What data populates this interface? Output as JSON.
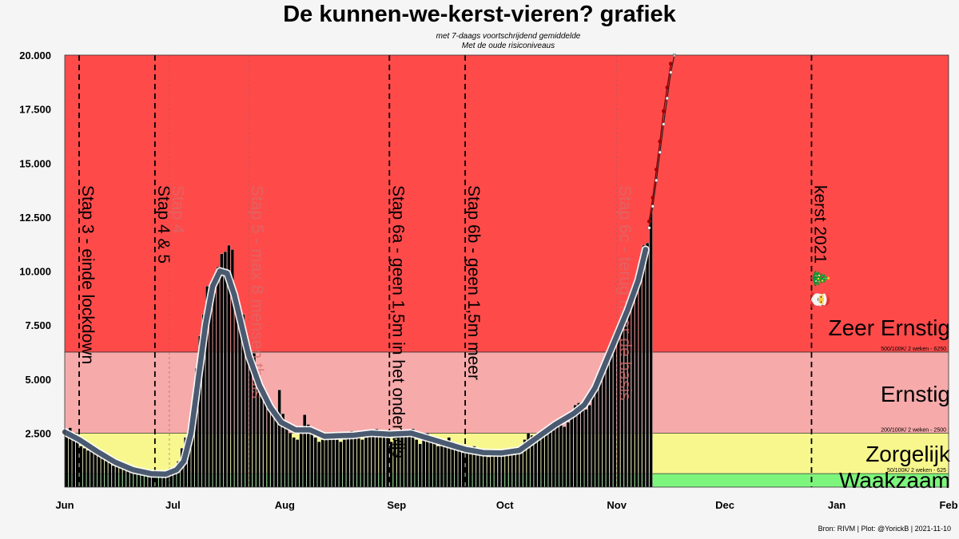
{
  "chart_data": {
    "type": "bar",
    "title": "De kunnen-we-kerst-vieren? grafiek",
    "subtitle_lines": [
      "met 7-daags voortschrijdend gemiddelde",
      "Met de oude risiconiveaus"
    ],
    "source": "Bron: RIVM | Plot: @YorickB  |  2021-11-10",
    "ylim": [
      0,
      20000
    ],
    "yticks": [
      2500,
      5000,
      7500,
      10000,
      12500,
      15000,
      17500,
      20000
    ],
    "ytick_labels": [
      "2.500",
      "5.000",
      "7.500",
      "10.000",
      "12.500",
      "15.000",
      "17.500",
      "20.000"
    ],
    "xlim": [
      "2021-06-01",
      "2022-02-01"
    ],
    "xticks": [
      {
        "date": "2021-06-01",
        "label": "Jun"
      },
      {
        "date": "2021-07-01",
        "label": "Jul"
      },
      {
        "date": "2021-08-01",
        "label": "Aug"
      },
      {
        "date": "2021-09-01",
        "label": "Sep"
      },
      {
        "date": "2021-10-01",
        "label": "Oct"
      },
      {
        "date": "2021-11-01",
        "label": "Nov"
      },
      {
        "date": "2021-12-01",
        "label": "Dec"
      },
      {
        "date": "2022-01-01",
        "label": "Jan"
      },
      {
        "date": "2022-02-01",
        "label": "Feb"
      }
    ],
    "grid": false,
    "zones": [
      {
        "name": "Waakzaam",
        "from": 0,
        "to": 625,
        "color": "#7df57d",
        "threshold_label": ""
      },
      {
        "name": "Zorgelijk",
        "from": 625,
        "to": 2500,
        "color": "#f7f78e",
        "threshold_label": "50/100K/ 2 weken - 625"
      },
      {
        "name": "Ernstig",
        "from": 2500,
        "to": 6250,
        "color": "#f7aaaa",
        "threshold_label": "200/100K/ 2 weken - 2500"
      },
      {
        "name": "Zeer Ernstig",
        "from": 6250,
        "to": 20000,
        "color": "#ff4a4a",
        "threshold_label": "500/100K/ 2 weken - 6250"
      }
    ],
    "events": [
      {
        "date": "2021-06-05",
        "label": "Stap 3 - einde lockdown",
        "style": "dark"
      },
      {
        "date": "2021-06-26",
        "label": "Stap 4 & 5",
        "style": "dark"
      },
      {
        "date": "2021-06-30",
        "label": "Stap 4",
        "style": "faded"
      },
      {
        "date": "2021-07-22",
        "label": "Stap 5 - max 8 mensen thuis",
        "style": "faded"
      },
      {
        "date": "2021-08-30",
        "label": "Stap 6a - geen 1,5m in het onderwijs",
        "style": "dark"
      },
      {
        "date": "2021-09-20",
        "label": "Stap 6b - geen 1,5m meer",
        "style": "dark"
      },
      {
        "date": "2021-11-01",
        "label": "Stap 6c - terug naar de basis",
        "style": "faded"
      },
      {
        "date": "2021-12-25",
        "label": "kerst 2021 🎄🎅",
        "style": "dark"
      }
    ],
    "daily_cases": [
      {
        "date": "2021-06-01",
        "value": 2500
      },
      {
        "date": "2021-06-02",
        "value": 2750
      },
      {
        "date": "2021-06-03",
        "value": 2350
      },
      {
        "date": "2021-06-04",
        "value": 2200
      },
      {
        "date": "2021-06-05",
        "value": 1900
      },
      {
        "date": "2021-06-06",
        "value": 1800
      },
      {
        "date": "2021-06-07",
        "value": 1700
      },
      {
        "date": "2021-06-08",
        "value": 1850
      },
      {
        "date": "2021-06-09",
        "value": 1750
      },
      {
        "date": "2021-06-10",
        "value": 1550
      },
      {
        "date": "2021-06-11",
        "value": 1450
      },
      {
        "date": "2021-06-12",
        "value": 1250
      },
      {
        "date": "2021-06-13",
        "value": 1150
      },
      {
        "date": "2021-06-14",
        "value": 1000
      },
      {
        "date": "2021-06-15",
        "value": 1050
      },
      {
        "date": "2021-06-16",
        "value": 950
      },
      {
        "date": "2021-06-17",
        "value": 900
      },
      {
        "date": "2021-06-18",
        "value": 850
      },
      {
        "date": "2021-06-19",
        "value": 780
      },
      {
        "date": "2021-06-20",
        "value": 720
      },
      {
        "date": "2021-06-21",
        "value": 680
      },
      {
        "date": "2021-06-22",
        "value": 650
      },
      {
        "date": "2021-06-23",
        "value": 640
      },
      {
        "date": "2021-06-24",
        "value": 620
      },
      {
        "date": "2021-06-25",
        "value": 600
      },
      {
        "date": "2021-06-26",
        "value": 580
      },
      {
        "date": "2021-06-27",
        "value": 550
      },
      {
        "date": "2021-06-28",
        "value": 600
      },
      {
        "date": "2021-06-29",
        "value": 650
      },
      {
        "date": "2021-06-30",
        "value": 750
      },
      {
        "date": "2021-07-01",
        "value": 900
      },
      {
        "date": "2021-07-02",
        "value": 1200
      },
      {
        "date": "2021-07-03",
        "value": 1800
      },
      {
        "date": "2021-07-04",
        "value": 2300
      },
      {
        "date": "2021-07-05",
        "value": 2600
      },
      {
        "date": "2021-07-06",
        "value": 3700
      },
      {
        "date": "2021-07-07",
        "value": 5500
      },
      {
        "date": "2021-07-08",
        "value": 7000
      },
      {
        "date": "2021-07-09",
        "value": 8000
      },
      {
        "date": "2021-07-10",
        "value": 9300
      },
      {
        "date": "2021-07-11",
        "value": 8700
      },
      {
        "date": "2021-07-12",
        "value": 9000
      },
      {
        "date": "2021-07-13",
        "value": 10200
      },
      {
        "date": "2021-07-14",
        "value": 10800
      },
      {
        "date": "2021-07-15",
        "value": 10900
      },
      {
        "date": "2021-07-16",
        "value": 11200
      },
      {
        "date": "2021-07-17",
        "value": 11000
      },
      {
        "date": "2021-07-18",
        "value": 9000
      },
      {
        "date": "2021-07-19",
        "value": 8200
      },
      {
        "date": "2021-07-20",
        "value": 8000
      },
      {
        "date": "2021-07-21",
        "value": 6800
      },
      {
        "date": "2021-07-22",
        "value": 6300
      },
      {
        "date": "2021-07-23",
        "value": 6200
      },
      {
        "date": "2021-07-24",
        "value": 5200
      },
      {
        "date": "2021-07-25",
        "value": 4700
      },
      {
        "date": "2021-07-26",
        "value": 4500
      },
      {
        "date": "2021-07-27",
        "value": 4000
      },
      {
        "date": "2021-07-28",
        "value": 3800
      },
      {
        "date": "2021-07-29",
        "value": 3600
      },
      {
        "date": "2021-07-30",
        "value": 4500
      },
      {
        "date": "2021-07-31",
        "value": 3400
      },
      {
        "date": "2021-08-01",
        "value": 2900
      },
      {
        "date": "2021-08-02",
        "value": 2500
      },
      {
        "date": "2021-08-03",
        "value": 2300
      },
      {
        "date": "2021-08-04",
        "value": 2200
      },
      {
        "date": "2021-08-05",
        "value": 2600
      },
      {
        "date": "2021-08-06",
        "value": 3350
      },
      {
        "date": "2021-08-07",
        "value": 2900
      },
      {
        "date": "2021-08-08",
        "value": 2500
      },
      {
        "date": "2021-08-09",
        "value": 2300
      },
      {
        "date": "2021-08-10",
        "value": 2100
      },
      {
        "date": "2021-08-11",
        "value": 2200
      },
      {
        "date": "2021-08-12",
        "value": 2400
      },
      {
        "date": "2021-08-13",
        "value": 2500
      },
      {
        "date": "2021-08-14",
        "value": 2400
      },
      {
        "date": "2021-08-15",
        "value": 2200
      },
      {
        "date": "2021-08-16",
        "value": 2100
      },
      {
        "date": "2021-08-17",
        "value": 2200
      },
      {
        "date": "2021-08-18",
        "value": 2500
      },
      {
        "date": "2021-08-19",
        "value": 2600
      },
      {
        "date": "2021-08-20",
        "value": 2500
      },
      {
        "date": "2021-08-21",
        "value": 2400
      },
      {
        "date": "2021-08-22",
        "value": 2200
      },
      {
        "date": "2021-08-23",
        "value": 2300
      },
      {
        "date": "2021-08-24",
        "value": 2400
      },
      {
        "date": "2021-08-25",
        "value": 2600
      },
      {
        "date": "2021-08-26",
        "value": 2700
      },
      {
        "date": "2021-08-27",
        "value": 2600
      },
      {
        "date": "2021-08-28",
        "value": 2500
      },
      {
        "date": "2021-08-29",
        "value": 2300
      },
      {
        "date": "2021-08-30",
        "value": 2100
      },
      {
        "date": "2021-08-31",
        "value": 2200
      },
      {
        "date": "2021-09-01",
        "value": 2500
      },
      {
        "date": "2021-09-02",
        "value": 2600
      },
      {
        "date": "2021-09-03",
        "value": 2400
      },
      {
        "date": "2021-09-04",
        "value": 2600
      },
      {
        "date": "2021-09-05",
        "value": 2700
      },
      {
        "date": "2021-09-06",
        "value": 2200
      },
      {
        "date": "2021-09-07",
        "value": 2000
      },
      {
        "date": "2021-09-08",
        "value": 2300
      },
      {
        "date": "2021-09-09",
        "value": 2500
      },
      {
        "date": "2021-09-10",
        "value": 2300
      },
      {
        "date": "2021-09-11",
        "value": 2100
      },
      {
        "date": "2021-09-12",
        "value": 1900
      },
      {
        "date": "2021-09-13",
        "value": 2000
      },
      {
        "date": "2021-09-14",
        "value": 2100
      },
      {
        "date": "2021-09-15",
        "value": 2300
      },
      {
        "date": "2021-09-16",
        "value": 2100
      },
      {
        "date": "2021-09-17",
        "value": 1900
      },
      {
        "date": "2021-09-18",
        "value": 1700
      },
      {
        "date": "2021-09-19",
        "value": 1600
      },
      {
        "date": "2021-09-20",
        "value": 1700
      },
      {
        "date": "2021-09-21",
        "value": 1800
      },
      {
        "date": "2021-09-22",
        "value": 1900
      },
      {
        "date": "2021-09-23",
        "value": 1500
      },
      {
        "date": "2021-09-24",
        "value": 1600
      },
      {
        "date": "2021-09-25",
        "value": 1500
      },
      {
        "date": "2021-09-26",
        "value": 1400
      },
      {
        "date": "2021-09-27",
        "value": 1500
      },
      {
        "date": "2021-09-28",
        "value": 1600
      },
      {
        "date": "2021-09-29",
        "value": 1700
      },
      {
        "date": "2021-09-30",
        "value": 1600
      },
      {
        "date": "2021-10-01",
        "value": 1600
      },
      {
        "date": "2021-10-02",
        "value": 1500
      },
      {
        "date": "2021-10-03",
        "value": 1500
      },
      {
        "date": "2021-10-04",
        "value": 1700
      },
      {
        "date": "2021-10-05",
        "value": 1900
      },
      {
        "date": "2021-10-06",
        "value": 2200
      },
      {
        "date": "2021-10-07",
        "value": 2500
      },
      {
        "date": "2021-10-08",
        "value": 2400
      },
      {
        "date": "2021-10-09",
        "value": 2300
      },
      {
        "date": "2021-10-10",
        "value": 2200
      },
      {
        "date": "2021-10-11",
        "value": 2400
      },
      {
        "date": "2021-10-12",
        "value": 2700
      },
      {
        "date": "2021-10-13",
        "value": 2800
      },
      {
        "date": "2021-10-14",
        "value": 3000
      },
      {
        "date": "2021-10-15",
        "value": 3100
      },
      {
        "date": "2021-10-16",
        "value": 2900
      },
      {
        "date": "2021-10-17",
        "value": 2800
      },
      {
        "date": "2021-10-18",
        "value": 3000
      },
      {
        "date": "2021-10-19",
        "value": 3500
      },
      {
        "date": "2021-10-20",
        "value": 3800
      },
      {
        "date": "2021-10-21",
        "value": 3900
      },
      {
        "date": "2021-10-22",
        "value": 3700
      },
      {
        "date": "2021-10-23",
        "value": 3600
      },
      {
        "date": "2021-10-24",
        "value": 3800
      },
      {
        "date": "2021-10-25",
        "value": 4300
      },
      {
        "date": "2021-10-26",
        "value": 4800
      },
      {
        "date": "2021-10-27",
        "value": 5200
      },
      {
        "date": "2021-10-28",
        "value": 5400
      },
      {
        "date": "2021-10-29",
        "value": 5800
      },
      {
        "date": "2021-10-30",
        "value": 6300
      },
      {
        "date": "2021-10-31",
        "value": 6800
      },
      {
        "date": "2021-11-01",
        "value": 7200
      },
      {
        "date": "2021-11-02",
        "value": 7700
      },
      {
        "date": "2021-11-03",
        "value": 8000
      },
      {
        "date": "2021-11-04",
        "value": 8500
      },
      {
        "date": "2021-11-05",
        "value": 9000
      },
      {
        "date": "2021-11-06",
        "value": 9800
      },
      {
        "date": "2021-11-07",
        "value": 10000
      },
      {
        "date": "2021-11-08",
        "value": 11200
      },
      {
        "date": "2021-11-09",
        "value": 11300
      },
      {
        "date": "2021-11-10",
        "value": 12700
      }
    ],
    "moving_average": [
      {
        "date": "2021-06-01",
        "value": 2550
      },
      {
        "date": "2021-06-05",
        "value": 2200
      },
      {
        "date": "2021-06-10",
        "value": 1650
      },
      {
        "date": "2021-06-15",
        "value": 1150
      },
      {
        "date": "2021-06-20",
        "value": 800
      },
      {
        "date": "2021-06-25",
        "value": 620
      },
      {
        "date": "2021-06-29",
        "value": 600
      },
      {
        "date": "2021-07-02",
        "value": 800
      },
      {
        "date": "2021-07-04",
        "value": 1200
      },
      {
        "date": "2021-07-06",
        "value": 2500
      },
      {
        "date": "2021-07-08",
        "value": 5000
      },
      {
        "date": "2021-07-10",
        "value": 7500
      },
      {
        "date": "2021-07-12",
        "value": 9300
      },
      {
        "date": "2021-07-14",
        "value": 10000
      },
      {
        "date": "2021-07-16",
        "value": 9900
      },
      {
        "date": "2021-07-18",
        "value": 8900
      },
      {
        "date": "2021-07-20",
        "value": 7500
      },
      {
        "date": "2021-07-22",
        "value": 6100
      },
      {
        "date": "2021-07-25",
        "value": 4700
      },
      {
        "date": "2021-07-28",
        "value": 3700
      },
      {
        "date": "2021-07-31",
        "value": 3000
      },
      {
        "date": "2021-08-04",
        "value": 2650
      },
      {
        "date": "2021-08-08",
        "value": 2650
      },
      {
        "date": "2021-08-12",
        "value": 2350
      },
      {
        "date": "2021-08-16",
        "value": 2380
      },
      {
        "date": "2021-08-20",
        "value": 2400
      },
      {
        "date": "2021-08-25",
        "value": 2500
      },
      {
        "date": "2021-08-30",
        "value": 2450
      },
      {
        "date": "2021-09-05",
        "value": 2500
      },
      {
        "date": "2021-09-10",
        "value": 2250
      },
      {
        "date": "2021-09-15",
        "value": 2000
      },
      {
        "date": "2021-09-20",
        "value": 1750
      },
      {
        "date": "2021-09-25",
        "value": 1600
      },
      {
        "date": "2021-09-30",
        "value": 1580
      },
      {
        "date": "2021-10-05",
        "value": 1700
      },
      {
        "date": "2021-10-10",
        "value": 2300
      },
      {
        "date": "2021-10-15",
        "value": 2900
      },
      {
        "date": "2021-10-20",
        "value": 3400
      },
      {
        "date": "2021-10-23",
        "value": 3800
      },
      {
        "date": "2021-10-26",
        "value": 4600
      },
      {
        "date": "2021-10-29",
        "value": 5800
      },
      {
        "date": "2021-11-01",
        "value": 7000
      },
      {
        "date": "2021-11-04",
        "value": 8200
      },
      {
        "date": "2021-11-07",
        "value": 9600
      },
      {
        "date": "2021-11-09",
        "value": 11000
      }
    ],
    "projection": [
      {
        "date": "2021-11-10",
        "value": 12000
      },
      {
        "date": "2021-11-11",
        "value": 13000
      },
      {
        "date": "2021-11-12",
        "value": 14200
      },
      {
        "date": "2021-11-13",
        "value": 15500
      },
      {
        "date": "2021-11-14",
        "value": 16800
      },
      {
        "date": "2021-11-15",
        "value": 18000
      },
      {
        "date": "2021-11-16",
        "value": 19200
      },
      {
        "date": "2021-11-17",
        "value": 20000
      }
    ],
    "projection_upper": [
      {
        "date": "2021-11-10",
        "value": 12300
      },
      {
        "date": "2021-11-11",
        "value": 13400
      },
      {
        "date": "2021-11-12",
        "value": 14700
      },
      {
        "date": "2021-11-13",
        "value": 16000
      },
      {
        "date": "2021-11-14",
        "value": 17400
      },
      {
        "date": "2021-11-15",
        "value": 18500
      },
      {
        "date": "2021-11-16",
        "value": 19600
      }
    ]
  }
}
